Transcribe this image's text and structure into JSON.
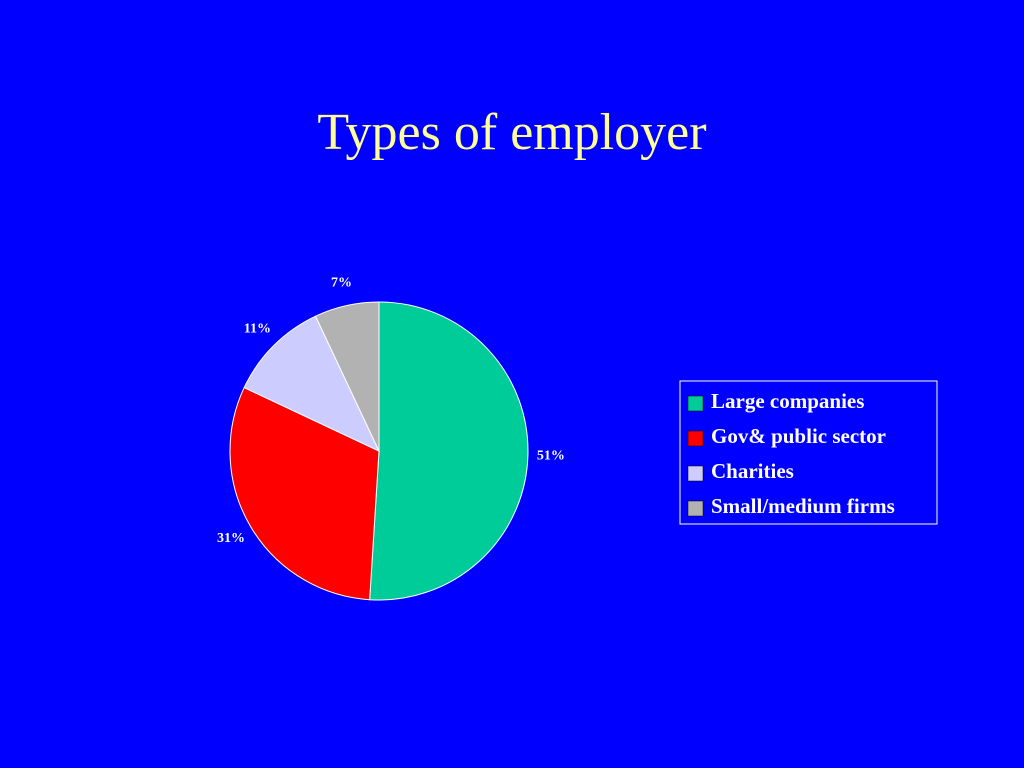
{
  "chart_data": {
    "type": "pie",
    "title": "Types of employer",
    "categories": [
      "Large companies",
      "Gov& public sector",
      "Charities",
      "Small/medium firms"
    ],
    "values": [
      51,
      31,
      11,
      7
    ],
    "value_labels": [
      "51%",
      "31%",
      "11%",
      "7%"
    ],
    "colors": [
      "#00cc99",
      "#ff0000",
      "#ccccff",
      "#b2b2b2"
    ],
    "legend": "right"
  }
}
